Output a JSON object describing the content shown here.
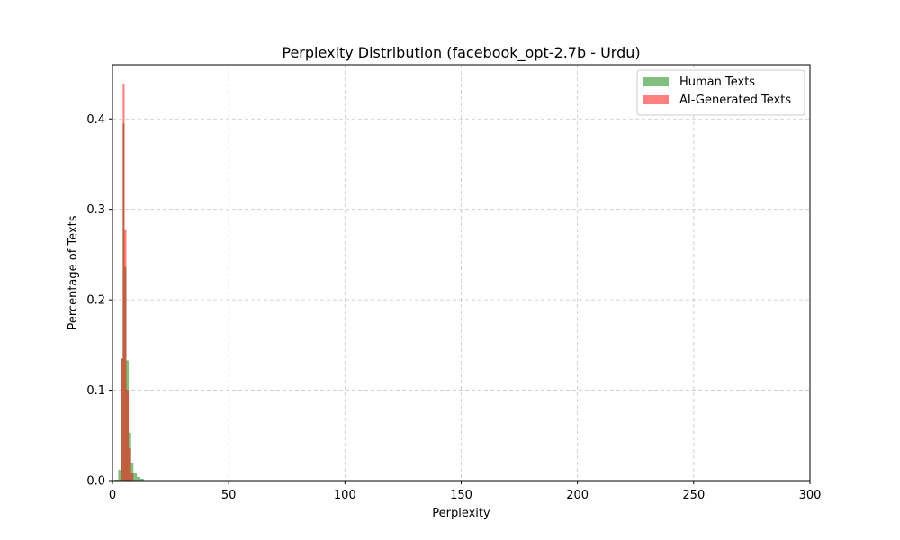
{
  "chart_data": {
    "type": "bar",
    "title": "Perplexity Distribution (facebook_opt-2.7b - Urdu)",
    "xlabel": "Perplexity",
    "ylabel": "Percentage of Texts",
    "xlim": [
      0,
      300
    ],
    "ylim": [
      0,
      0.46
    ],
    "x_ticks": [
      0,
      50,
      100,
      150,
      200,
      250,
      300
    ],
    "y_ticks": [
      0.0,
      0.1,
      0.2,
      0.3,
      0.4
    ],
    "y_tick_labels": [
      "0.0",
      "0.1",
      "0.2",
      "0.3",
      "0.4"
    ],
    "grid": true,
    "legend_position": "top-right",
    "series": [
      {
        "name": "Human Texts",
        "color": "#008000",
        "bins": [
          {
            "x0": 1.0,
            "x1": 2.5,
            "value": 0.001
          },
          {
            "x0": 2.5,
            "x1": 3.6,
            "value": 0.012
          },
          {
            "x0": 3.6,
            "x1": 4.4,
            "value": 0.135
          },
          {
            "x0": 4.4,
            "x1": 5.2,
            "value": 0.395
          },
          {
            "x0": 5.2,
            "x1": 6.0,
            "value": 0.236
          },
          {
            "x0": 6.0,
            "x1": 7.0,
            "value": 0.133
          },
          {
            "x0": 7.0,
            "x1": 8.0,
            "value": 0.053
          },
          {
            "x0": 8.0,
            "x1": 9.0,
            "value": 0.02
          },
          {
            "x0": 9.0,
            "x1": 10.5,
            "value": 0.008
          },
          {
            "x0": 10.5,
            "x1": 12.0,
            "value": 0.004
          },
          {
            "x0": 12.0,
            "x1": 13.5,
            "value": 0.002
          }
        ]
      },
      {
        "name": "AI-Generated Texts",
        "color": "#ff0000",
        "bins": [
          {
            "x0": 3.6,
            "x1": 4.4,
            "value": 0.135
          },
          {
            "x0": 4.4,
            "x1": 5.2,
            "value": 0.439
          },
          {
            "x0": 5.2,
            "x1": 6.0,
            "value": 0.277
          },
          {
            "x0": 6.0,
            "x1": 7.0,
            "value": 0.1
          },
          {
            "x0": 7.0,
            "x1": 8.0,
            "value": 0.036
          },
          {
            "x0": 8.0,
            "x1": 9.0,
            "value": 0.008
          }
        ]
      }
    ]
  }
}
